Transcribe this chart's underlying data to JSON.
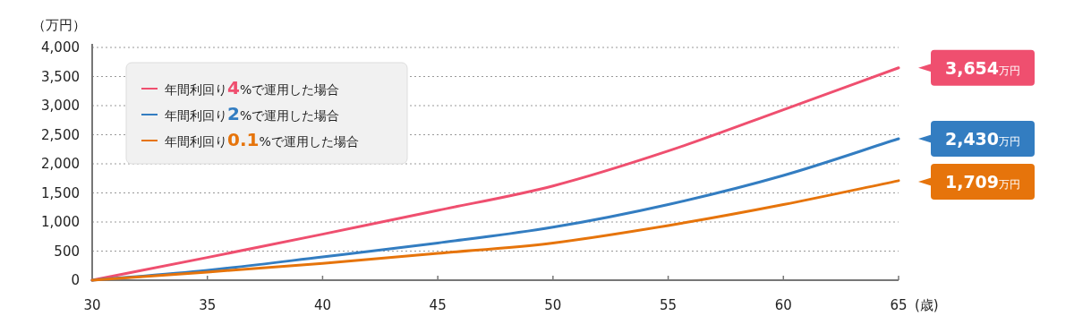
{
  "chart_data": {
    "type": "line",
    "ylabel": "（万円）",
    "xlabel": "(歳)",
    "x": [
      30,
      35,
      40,
      45,
      50,
      55,
      60,
      65
    ],
    "xlim": [
      30,
      65
    ],
    "xticks": [
      30,
      35,
      40,
      45,
      50,
      55,
      60,
      65
    ],
    "ylim": [
      0,
      4000
    ],
    "yticks": [
      0,
      500,
      {
        "value": 1000,
        "label": "1,000"
      },
      {
        "value": 1500,
        "label": "1,500"
      },
      {
        "value": 2000,
        "label": "2,000"
      },
      {
        "value": 2500,
        "label": "2,500"
      },
      {
        "value": 3000,
        "label": "3,000"
      },
      {
        "value": 3500,
        "label": "3,500"
      },
      {
        "value": 4000,
        "label": "4,000"
      }
    ],
    "grid": "y",
    "legend": "top left",
    "marker": "none",
    "line_style": "solid",
    "series": [
      {
        "name": "年間利回り4%で運用した場合",
        "color": "#ef4f6f",
        "values": [
          0,
          390,
          790,
          1200,
          1620,
          2220,
          2930,
          3650
        ]
      },
      {
        "name": "年間利回り2%で運用した場合",
        "color": "#337dc1",
        "values": [
          0,
          170,
          400,
          640,
          910,
          1300,
          1800,
          2430
        ]
      },
      {
        "name": "年間利回り0.1%で運用した場合",
        "color": "#e6740b",
        "values": [
          0,
          140,
          290,
          460,
          640,
          940,
          1300,
          1710
        ]
      }
    ],
    "annotations": [
      "3,654万円",
      "2,430万円",
      "1,709万円"
    ]
  }
}
